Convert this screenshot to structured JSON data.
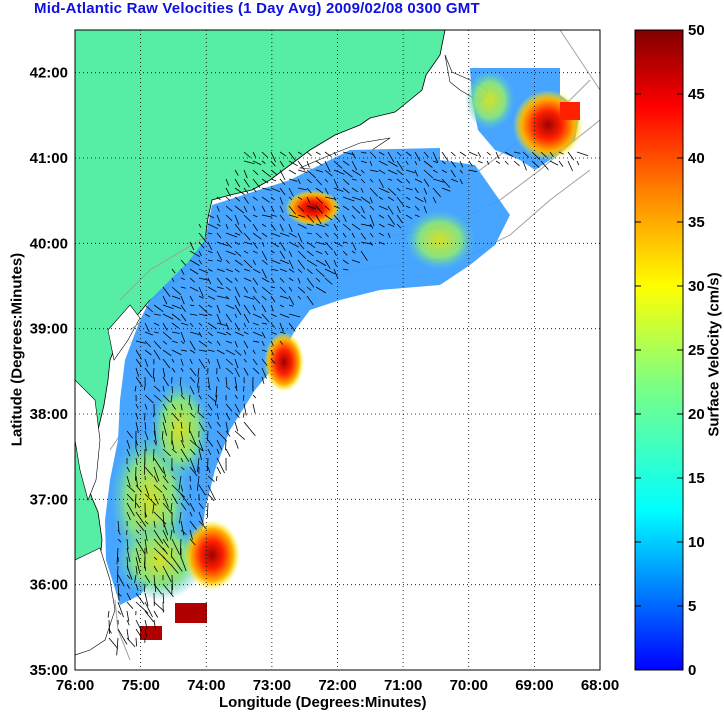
{
  "title": "Mid-Atlantic Raw Velocities (1 Day Avg) 2009/02/08 0300 GMT",
  "map": {
    "xlabel": "Longitude (Degrees:Minutes)",
    "ylabel": "Latitude (Degrees:Minutes)",
    "lon_ticks": [
      "76:00",
      "75:00",
      "74:00",
      "73:00",
      "72:00",
      "71:00",
      "70:00",
      "69:00",
      "68:00"
    ],
    "lat_ticks": [
      "42:00",
      "41:00",
      "40:00",
      "39:00",
      "38:00",
      "37:00",
      "36:00",
      "35:00"
    ],
    "lon_range": [
      -76,
      -68
    ],
    "lat_range": [
      35,
      42.5
    ]
  },
  "colorbar": {
    "label": "Surface Velocity (cm/s)",
    "ticks": [
      "0",
      "5",
      "10",
      "15",
      "20",
      "25",
      "30",
      "35",
      "40",
      "45",
      "50"
    ],
    "range": [
      0,
      50
    ],
    "colormap": "jet"
  },
  "colors": {
    "land": "#55eea4",
    "title": "#1010e0",
    "background": "#ffffff",
    "grid": "#000000",
    "bathymetry": "#a0a0a0"
  }
}
